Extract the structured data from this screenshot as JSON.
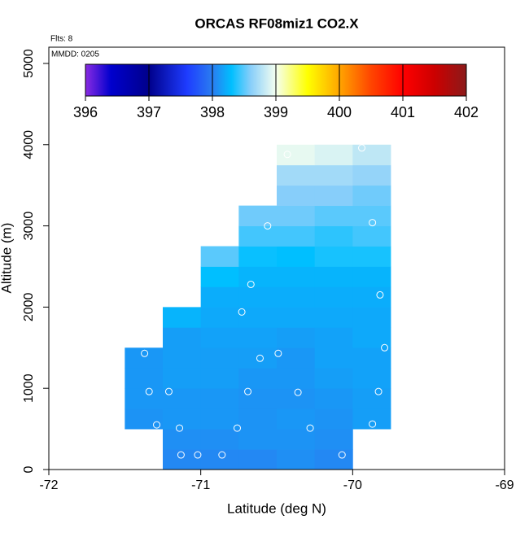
{
  "chart_data": {
    "type": "heatmap",
    "title": "ORCAS RF08miz1 CO2.X",
    "flights_label": "Flts: 8",
    "date_label": "MMDD: 0205",
    "x_label": "Latitude (deg N)",
    "y_label": "Altitude (m)",
    "xlim": [
      -72,
      -69
    ],
    "xticks": [
      -72,
      -71,
      -70,
      -69
    ],
    "ylim": [
      0,
      5200
    ],
    "yticks": [
      0,
      1000,
      2000,
      3000,
      4000,
      5000
    ],
    "x_edges": [
      -71.5,
      -71.25,
      -71,
      -70.75,
      -70.5,
      -70.25,
      -70,
      -69.75
    ],
    "y_edges": [
      0,
      250,
      500,
      750,
      1000,
      1250,
      1500,
      1750,
      2000,
      2250,
      2500,
      2750,
      3000,
      3250,
      3500,
      3750,
      4000
    ],
    "values": [
      [
        null,
        398.05,
        398.05,
        398.05,
        398.08,
        398.05,
        null
      ],
      [
        null,
        398.08,
        398.08,
        398.1,
        398.1,
        398.08,
        null
      ],
      [
        398.1,
        398.12,
        398.12,
        398.1,
        398.12,
        398.1,
        398.15
      ],
      [
        398.12,
        398.12,
        398.12,
        398.1,
        398.1,
        398.12,
        398.15
      ],
      [
        398.12,
        398.15,
        398.15,
        398.12,
        398.12,
        398.15,
        398.17
      ],
      [
        398.12,
        398.15,
        398.15,
        398.15,
        398.12,
        398.17,
        398.17
      ],
      [
        null,
        398.15,
        398.17,
        398.17,
        398.15,
        398.17,
        398.2
      ],
      [
        null,
        398.25,
        398.2,
        398.2,
        398.2,
        398.2,
        398.2
      ],
      [
        null,
        null,
        398.22,
        398.22,
        398.22,
        398.22,
        398.22
      ],
      [
        null,
        null,
        398.3,
        398.25,
        398.25,
        398.25,
        398.25
      ],
      [
        null,
        null,
        398.5,
        398.32,
        398.3,
        398.35,
        398.35
      ],
      [
        null,
        null,
        null,
        398.45,
        398.45,
        398.4,
        398.45
      ],
      [
        null,
        null,
        null,
        398.55,
        398.55,
        398.5,
        398.5
      ],
      [
        null,
        null,
        null,
        null,
        398.6,
        398.6,
        398.55
      ],
      [
        null,
        null,
        null,
        null,
        398.7,
        398.7,
        398.65
      ],
      [
        null,
        null,
        null,
        null,
        398.95,
        398.9,
        398.8
      ]
    ],
    "points": {
      "x": [
        -70.43,
        -69.94,
        -70.56,
        -69.87,
        -70.67,
        -69.82,
        -70.73,
        -69.79,
        -71.37,
        -70.49,
        -70.61,
        -71.34,
        -71.21,
        -70.69,
        -70.36,
        -69.83,
        -71.29,
        -71.14,
        -70.76,
        -70.28,
        -69.87,
        -71.13,
        -71.02,
        -70.86,
        -70.07
      ],
      "y": [
        3880,
        3960,
        3000,
        3040,
        2280,
        2150,
        1940,
        1500,
        1430,
        1430,
        1370,
        960,
        960,
        960,
        950,
        960,
        550,
        510,
        510,
        510,
        560,
        180,
        180,
        180,
        180
      ],
      "color": "#ffffff"
    },
    "colorbar": {
      "lim": [
        396,
        402
      ],
      "ticks": [
        396,
        397,
        398,
        399,
        400,
        401,
        402
      ],
      "stops": [
        [
          396,
          "#8a2be2"
        ],
        [
          396.4,
          "#0000cd"
        ],
        [
          397,
          "#00008b"
        ],
        [
          397.6,
          "#1e3cff"
        ],
        [
          398,
          "#2a7df0"
        ],
        [
          398.3,
          "#00bfff"
        ],
        [
          398.6,
          "#87cefa"
        ],
        [
          399,
          "#f5fff0"
        ],
        [
          399.5,
          "#ffff00"
        ],
        [
          400,
          "#ffa500"
        ],
        [
          400.5,
          "#ff4500"
        ],
        [
          401,
          "#ff0000"
        ],
        [
          401.5,
          "#cc0000"
        ],
        [
          402,
          "#8b1a1a"
        ]
      ]
    }
  }
}
